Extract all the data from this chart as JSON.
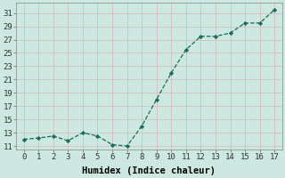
{
  "x": [
    0,
    1,
    2,
    3,
    4,
    5,
    6,
    7,
    8,
    9,
    10,
    11,
    12,
    13,
    14,
    15,
    16,
    17
  ],
  "y": [
    12.0,
    12.2,
    12.5,
    11.8,
    13.0,
    12.5,
    11.2,
    11.0,
    14.0,
    18.0,
    22.0,
    25.5,
    27.5,
    27.5,
    28.0,
    29.5,
    29.5,
    31.5
  ],
  "line_color": "#1a6b5a",
  "marker_color": "#1a6b5a",
  "background_color": "#cce8e0",
  "grid_color_v": "#d4b8b8",
  "grid_color_h": "#d4b8b8",
  "xlabel": "Humidex (Indice chaleur)",
  "yticks": [
    11,
    13,
    15,
    17,
    19,
    21,
    23,
    25,
    27,
    29,
    31
  ],
  "xticks": [
    0,
    1,
    2,
    3,
    4,
    5,
    6,
    7,
    8,
    9,
    10,
    11,
    12,
    13,
    14,
    15,
    16,
    17
  ],
  "xlim": [
    -0.5,
    17.5
  ],
  "ylim": [
    10.5,
    32.5
  ],
  "xlabel_fontsize": 7.5,
  "tick_fontsize": 6.5
}
